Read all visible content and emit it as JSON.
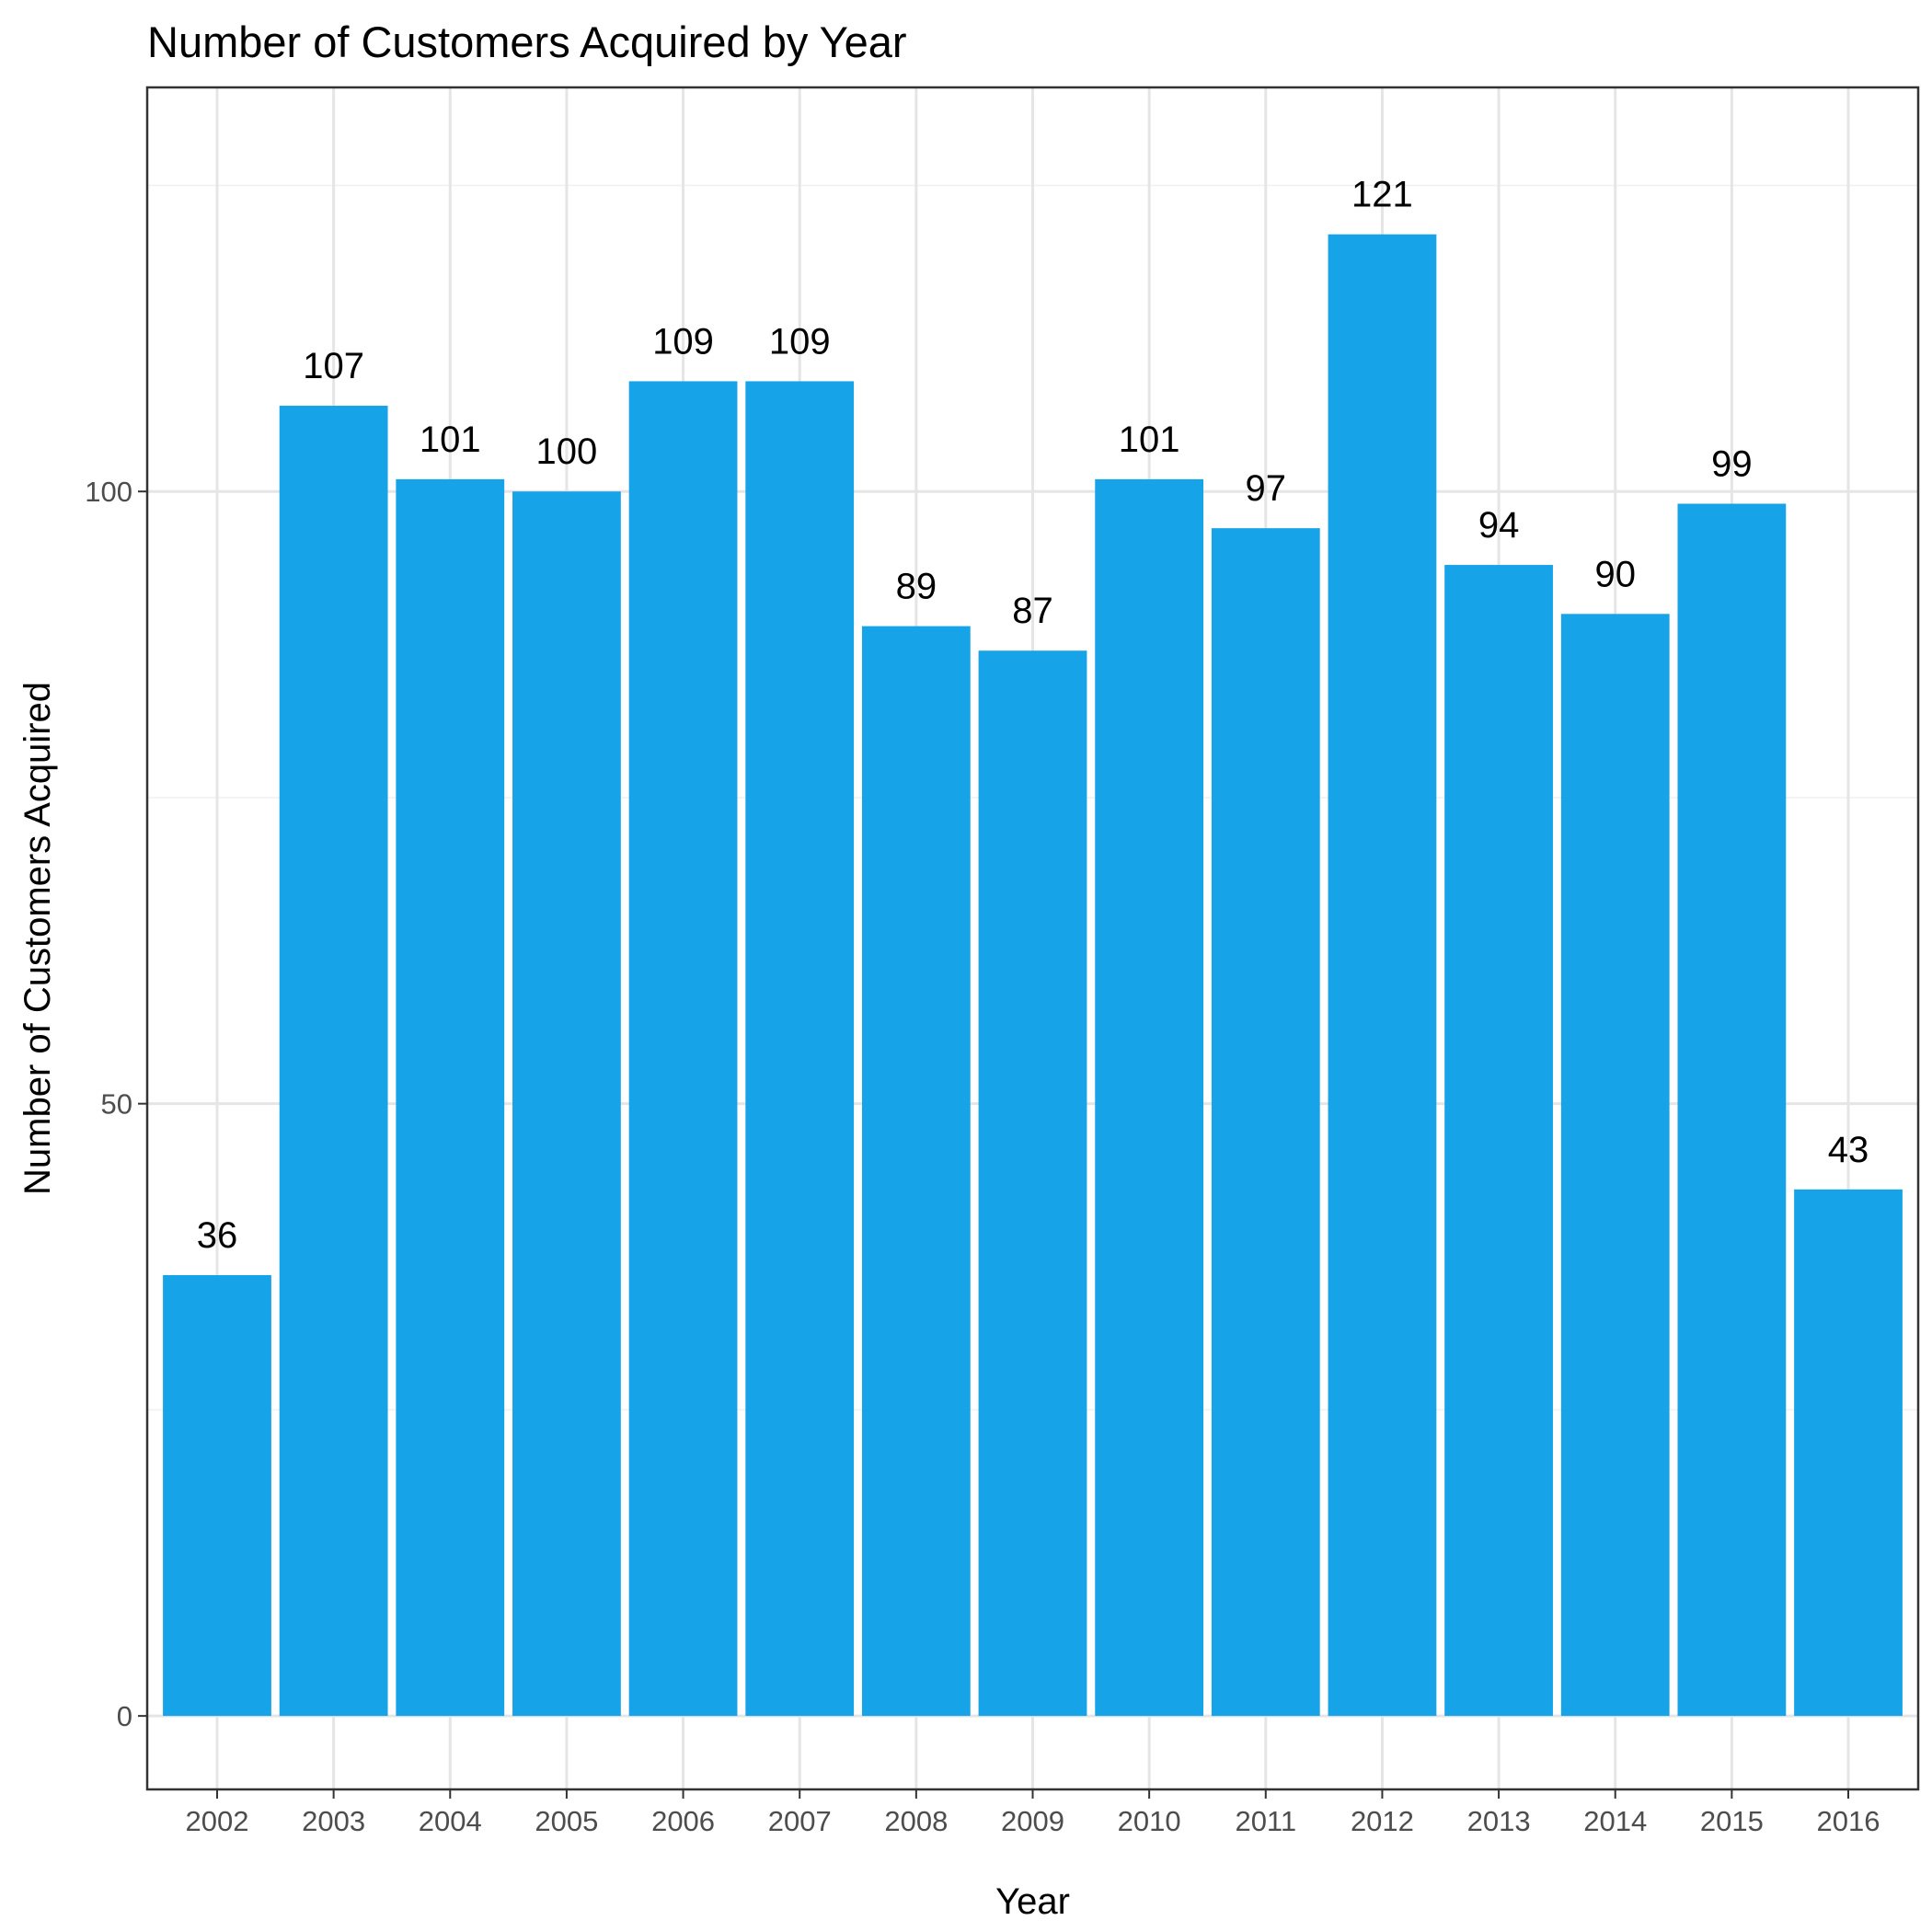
{
  "chart_data": {
    "type": "bar",
    "title": "Number of Customers Acquired by Year",
    "xlabel": "Year",
    "ylabel": "Number of Customers Acquired",
    "categories": [
      "2002",
      "2003",
      "2004",
      "2005",
      "2006",
      "2007",
      "2008",
      "2009",
      "2010",
      "2011",
      "2012",
      "2013",
      "2014",
      "2015",
      "2016"
    ],
    "values": [
      36,
      107,
      101,
      100,
      109,
      109,
      89,
      87,
      101,
      97,
      121,
      94,
      90,
      99,
      43
    ],
    "data_labels": [
      "36",
      "107",
      "101",
      "100",
      "109",
      "109",
      "89",
      "87",
      "101",
      "97",
      "121",
      "94",
      "90",
      "99",
      "43"
    ],
    "ylim": [
      -6,
      133
    ],
    "yticks": [
      0,
      50,
      100
    ],
    "ytick_labels": [
      "0",
      "50",
      "100"
    ],
    "grid": true,
    "legend": "none",
    "bar_color": "#17a3e8",
    "panel_border_color": "#333333"
  }
}
